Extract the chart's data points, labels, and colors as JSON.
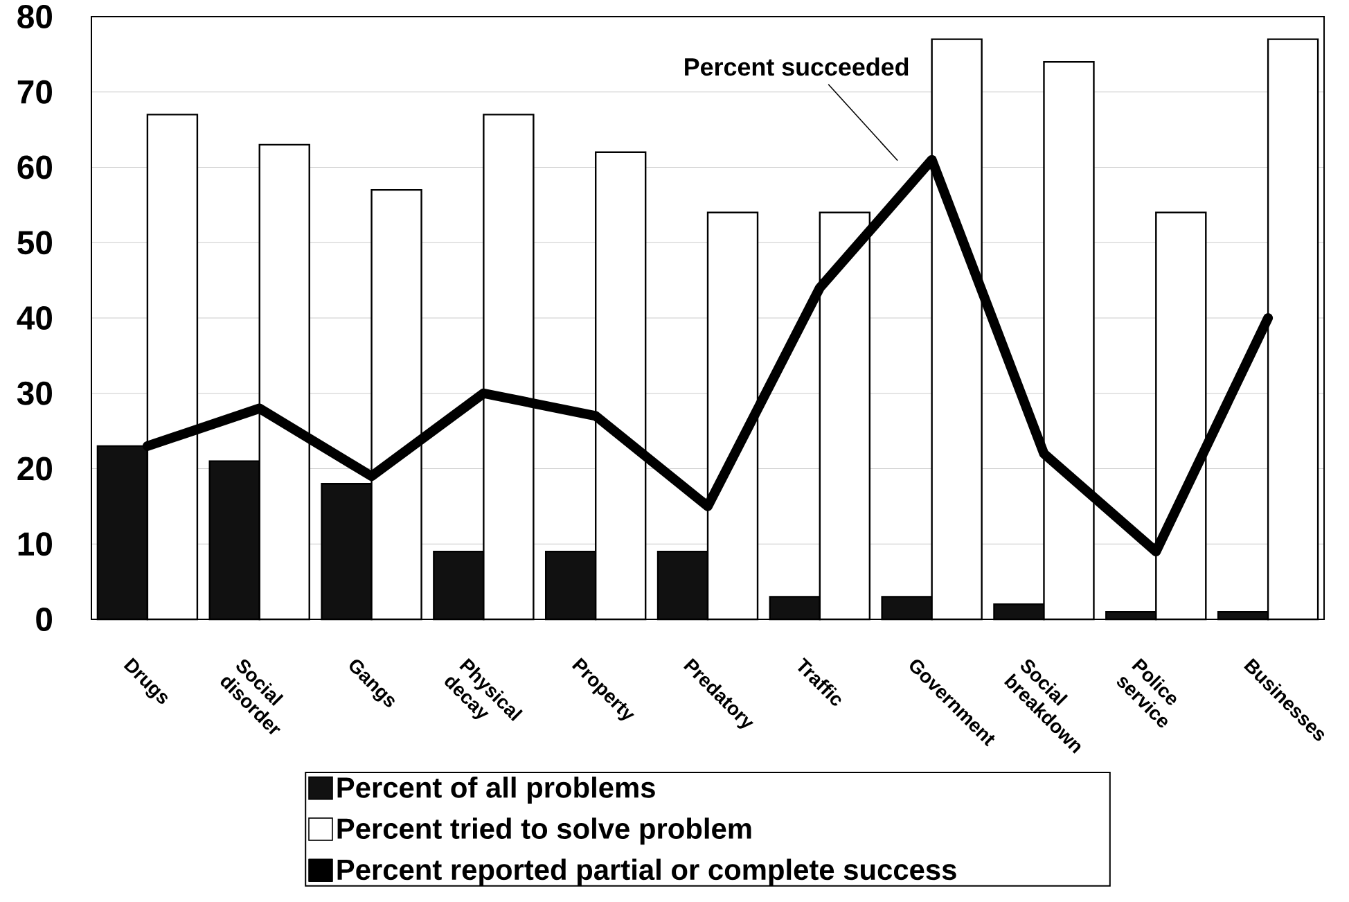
{
  "chart_data": {
    "type": "bar",
    "categories": [
      "Drugs",
      "Social disorder",
      "Gangs",
      "Physical decay",
      "Property",
      "Predatory",
      "Traffic",
      "Government",
      "Social breakdown",
      "Police service",
      "Businesses"
    ],
    "series": [
      {
        "name": "Percent of all problems",
        "color": "#111111",
        "values": [
          23,
          21,
          18,
          9,
          9,
          9,
          3,
          3,
          2,
          1,
          1
        ]
      },
      {
        "name": "Percent tried to solve problem",
        "color": "#ffffff",
        "values": [
          67,
          63,
          57,
          67,
          62,
          54,
          54,
          77,
          74,
          54,
          77
        ]
      },
      {
        "name": "Percent reported partial or complete success",
        "type": "line",
        "color": "#000000",
        "values": [
          23,
          28,
          19,
          30,
          27,
          15,
          44,
          61,
          22,
          9,
          40
        ]
      }
    ],
    "ylim": [
      0,
      80
    ],
    "yticks": [
      0,
      10,
      20,
      30,
      40,
      50,
      60,
      70,
      80
    ],
    "grid": "y",
    "legend": "bottom",
    "annotations": [
      "Percent succeeded"
    ]
  }
}
